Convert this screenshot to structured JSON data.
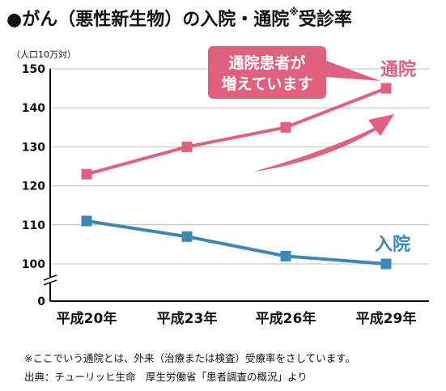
{
  "title": {
    "bullet": "●",
    "main": "がん（悪性新生物）の入院・通院",
    "mark": "※",
    "tail": "受診率"
  },
  "callout": {
    "line1": "通院患者が",
    "line2": "増えています"
  },
  "footnotes": {
    "note": "※ここでいう通院とは、外来（治療または検査）受療率をさしています。",
    "source": "出典：チューリッヒ生命　厚生労働省「患者調査の概況」より"
  },
  "colors": {
    "outpatient": "#e0607e",
    "inpatient": "#3a88b8",
    "callout_bg": "#e0607e",
    "axis": "#111111",
    "grid": "#bfbfbf"
  },
  "chart_data": {
    "type": "line",
    "categories": [
      "平成20年",
      "平成23年",
      "平成26年",
      "平成29年"
    ],
    "series": [
      {
        "name": "通院",
        "values": [
          123,
          130,
          135,
          145
        ]
      },
      {
        "name": "入院",
        "values": [
          111,
          107,
          102,
          100
        ]
      }
    ],
    "ylabel": "（人口10万対）",
    "ylim": [
      90,
      150
    ],
    "yticks": [
      100,
      110,
      120,
      130,
      140,
      150
    ],
    "ybottom_label": "0",
    "axis_break": true,
    "grid": true
  }
}
